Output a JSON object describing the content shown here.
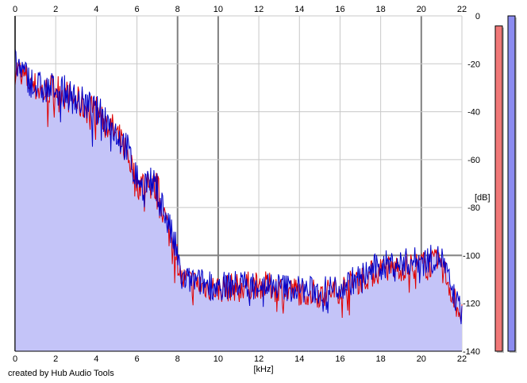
{
  "credit": "created by Hub Audio Tools",
  "chart_data": {
    "type": "area",
    "xlabel": "[kHz]",
    "ylabel": "[dB]",
    "xlim": [
      0,
      22
    ],
    "ylim": [
      -140,
      0
    ],
    "x_ticks": [
      0,
      2,
      4,
      6,
      8,
      10,
      12,
      14,
      16,
      18,
      20,
      22
    ],
    "y_ticks": [
      0,
      -20,
      -40,
      -60,
      -80,
      -100,
      -120,
      -140
    ],
    "grid": true,
    "colors": {
      "channel_1": "#e00000",
      "channel_2": "#0000c8",
      "fill": "#c4c4f8",
      "grid_light": "#c8c8c8",
      "grid_dark": "#808080",
      "meter_1": "#f07878",
      "meter_2": "#8c8cf0"
    },
    "series": [
      {
        "x": [
          0,
          0.5,
          1,
          1.5,
          2,
          2.5,
          3,
          3.5,
          4,
          4.5,
          5,
          5.5,
          6,
          6.5,
          7,
          7.5,
          7.9,
          8.2,
          9,
          10,
          11,
          12,
          13,
          14,
          15,
          16,
          17,
          18,
          19,
          20,
          21,
          21.6,
          22
        ],
        "values": [
          -22,
          -26,
          -30,
          -32,
          -30,
          -33,
          -36,
          -38,
          -40,
          -44,
          -50,
          -56,
          -70,
          -70,
          -72,
          -88,
          -98,
          -110,
          -112,
          -114,
          -113,
          -112,
          -114,
          -115,
          -116,
          -114,
          -110,
          -106,
          -105,
          -104,
          -103,
          -118,
          -125
        ]
      },
      {
        "x": [
          0,
          0.5,
          1,
          1.5,
          2,
          2.5,
          3,
          3.5,
          4,
          4.5,
          5,
          5.5,
          6,
          6.5,
          7,
          7.5,
          7.9,
          8.2,
          9,
          10,
          11,
          12,
          13,
          14,
          15,
          16,
          17,
          18,
          19,
          20,
          21,
          21.6,
          22
        ],
        "values": [
          -20,
          -25,
          -29,
          -31,
          -30,
          -32,
          -35,
          -37,
          -40,
          -43,
          -49,
          -55,
          -68,
          -69,
          -72,
          -86,
          -97,
          -110,
          -111,
          -113,
          -112,
          -112,
          -113,
          -114,
          -115,
          -113,
          -109,
          -104,
          -103,
          -102,
          -101,
          -117,
          -124
        ]
      }
    ],
    "meters": [
      0.97,
      1.0
    ]
  }
}
